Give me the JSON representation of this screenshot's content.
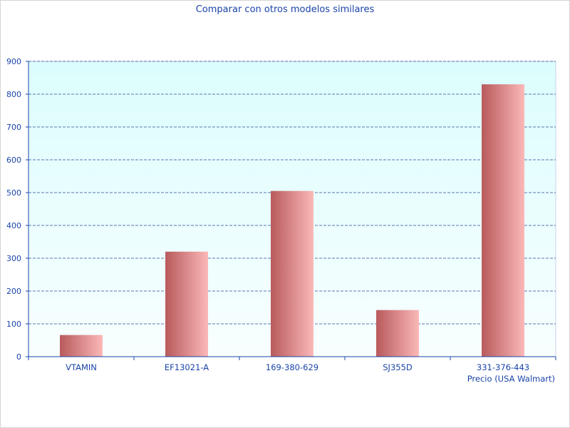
{
  "chart_data": {
    "type": "bar",
    "title": "Comparar con otros modelos similares",
    "xlabel": "Precio (USA Walmart)",
    "ylabel": "",
    "categories": [
      "VTAMIN",
      "EF13021-A",
      "169-380-629",
      "SJ355D",
      "331-376-443"
    ],
    "values": [
      66,
      320,
      505,
      142,
      830
    ],
    "ylim": [
      0,
      900
    ],
    "yticks": [
      0,
      100,
      200,
      300,
      400,
      500,
      600,
      700,
      800,
      900
    ],
    "grid": true,
    "legend": "none"
  },
  "colors": {
    "text": "#1a44a8",
    "grid": "#2b4a9a",
    "axis": "#1a44a8",
    "plot_bg_top": "#dcfdfd",
    "plot_bg_bottom": "#f8fefe",
    "bar_dark": "#b85a5c",
    "bar_light": "#fbb8b8"
  }
}
